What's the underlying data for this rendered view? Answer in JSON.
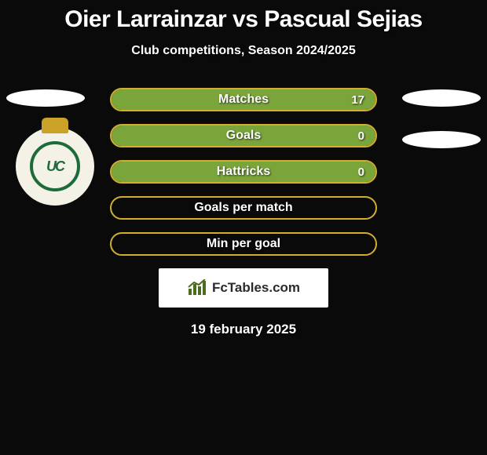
{
  "title": "Oier Larrainzar vs Pascual Sejias",
  "subtitle": "Club competitions, Season 2024/2025",
  "date": "19 february 2025",
  "logo_text": "FcTables.com",
  "badge": {
    "letters": "UC"
  },
  "colors": {
    "bar_border": "#d2ae2f",
    "bar_fill": "#7aa53a",
    "background": "#0a0a0a",
    "text": "#ffffff",
    "logo_bar_fill": "#4a6d1e"
  },
  "bars": [
    {
      "label": "Matches",
      "value": "17",
      "fill_pct": 100,
      "show_value": true
    },
    {
      "label": "Goals",
      "value": "0",
      "fill_pct": 100,
      "show_value": true
    },
    {
      "label": "Hattricks",
      "value": "0",
      "fill_pct": 100,
      "show_value": true
    },
    {
      "label": "Goals per match",
      "value": "",
      "fill_pct": 0,
      "show_value": false
    },
    {
      "label": "Min per goal",
      "value": "",
      "fill_pct": 0,
      "show_value": false
    }
  ]
}
